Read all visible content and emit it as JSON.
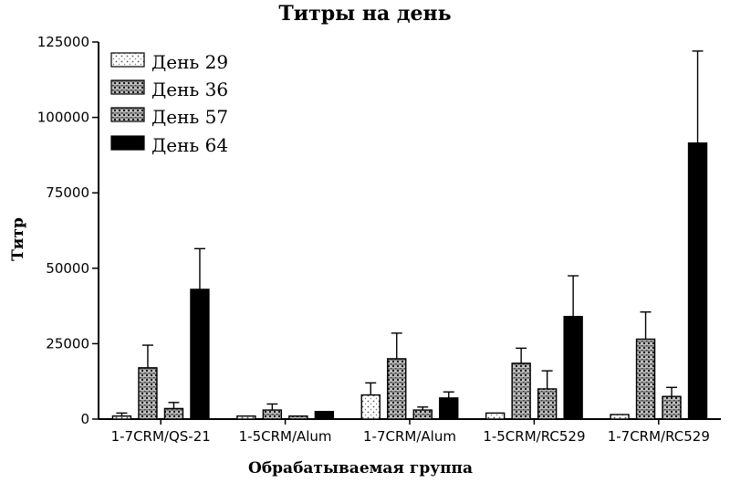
{
  "chart_data": {
    "type": "bar",
    "title": "Титры на день",
    "xlabel": "Обрабатываемая группа",
    "ylabel": "Титр",
    "categories": [
      "1-7CRM/QS-21",
      "1-5CRM/Alum",
      "1-7CRM/Alum",
      "1-5CRM/RC529",
      "1-7CRM/RC529"
    ],
    "ylim": [
      0,
      125000
    ],
    "yticks": [
      0,
      25000,
      50000,
      75000,
      100000,
      125000
    ],
    "legend_position": "top-left",
    "series": [
      {
        "name": "День 29",
        "values": [
          1000,
          1000,
          8000,
          2000,
          1500
        ],
        "errors": [
          1000,
          0,
          4000,
          0,
          0
        ],
        "fill": "light-hatch"
      },
      {
        "name": "День 36",
        "values": [
          17000,
          3000,
          20000,
          18500,
          26500
        ],
        "errors": [
          7500,
          2000,
          8500,
          5000,
          9000
        ],
        "fill": "medium-hatch"
      },
      {
        "name": "День 57",
        "values": [
          3500,
          1000,
          3000,
          10000,
          7500
        ],
        "errors": [
          2000,
          0,
          1000,
          6000,
          3000
        ],
        "fill": "medium-hatch"
      },
      {
        "name": "День 64",
        "values": [
          43000,
          2500,
          7000,
          34000,
          91500
        ],
        "errors": [
          13500,
          0,
          2000,
          13500,
          30500
        ],
        "fill": "solid"
      }
    ],
    "grid": false
  }
}
